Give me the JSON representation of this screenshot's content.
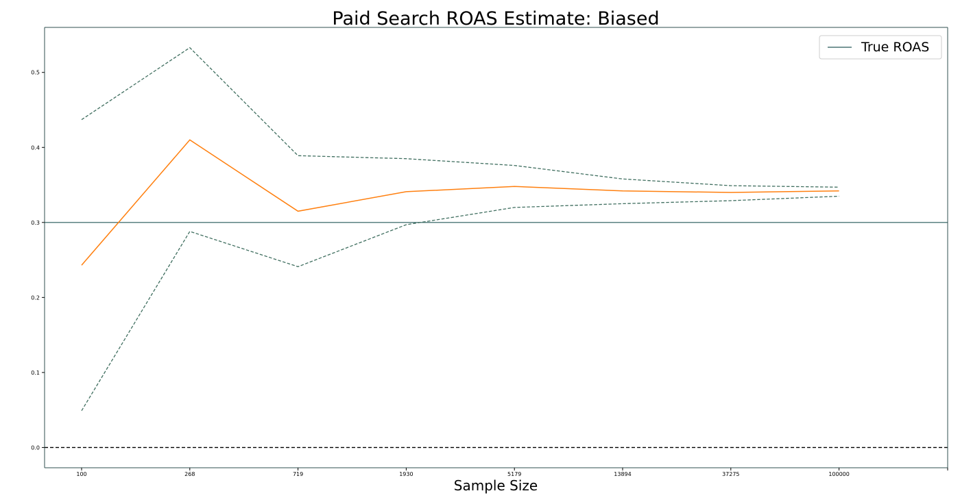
{
  "chart_data": {
    "type": "line",
    "title": "Paid Search ROAS Estimate: Biased",
    "xlabel": "Sample Size",
    "ylabel": "",
    "categories": [
      "100",
      "268",
      "719",
      "1930",
      "5179",
      "13894",
      "37275",
      "100000"
    ],
    "ylim": [
      -0.027,
      0.56
    ],
    "yticks": [
      0.0,
      0.1,
      0.2,
      0.3,
      0.4,
      0.5
    ],
    "ytick_labels": [
      "0.0",
      "0.1",
      "0.2",
      "0.3",
      "0.4",
      "0.5"
    ],
    "series": [
      {
        "key": "estimate",
        "style": "solid",
        "color": "#ff7f0e",
        "values": [
          0.243,
          0.41,
          0.315,
          0.341,
          0.348,
          0.342,
          0.34,
          0.342
        ]
      },
      {
        "key": "upper",
        "style": "dashed",
        "color": "#3f6e5f",
        "values": [
          0.437,
          0.533,
          0.389,
          0.385,
          0.376,
          0.358,
          0.349,
          0.347
        ]
      },
      {
        "key": "lower",
        "style": "dashed",
        "color": "#3f6e5f",
        "values": [
          0.049,
          0.288,
          0.241,
          0.297,
          0.32,
          0.325,
          0.329,
          0.335
        ]
      }
    ],
    "reference_lines": [
      {
        "name": "True ROAS",
        "y": 0.3,
        "style": "solid",
        "color": "#4a7575"
      },
      {
        "y": 0.0,
        "style": "dashed",
        "color": "#000000"
      }
    ],
    "legend": {
      "position": "top-right",
      "entries": [
        "True ROAS"
      ]
    },
    "grid": false,
    "colors": {
      "axis": "#2f4f4f"
    }
  }
}
